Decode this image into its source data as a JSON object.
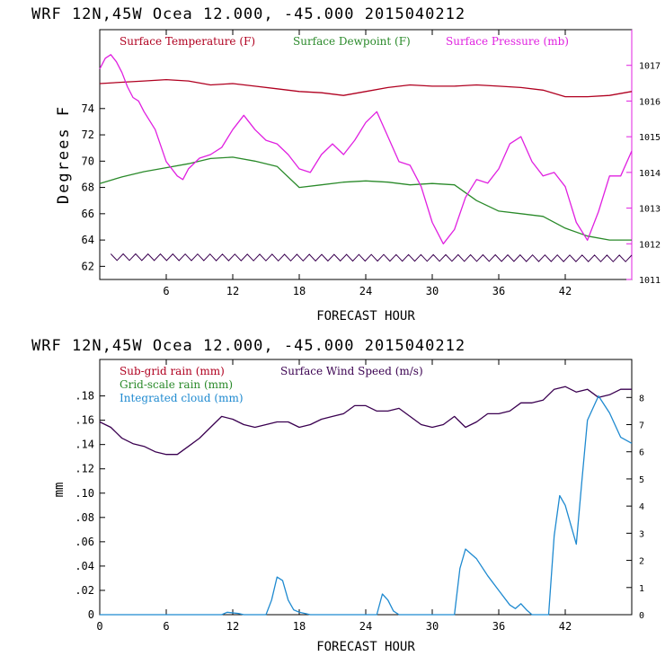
{
  "chart_data": [
    {
      "type": "line",
      "header": "WRF  12N,45W Ocea  12.000, -45.000  2015040212",
      "xlabel": "FORECAST HOUR",
      "ylabel": "Degrees F",
      "xlim": [
        0,
        48
      ],
      "ylim": [
        61,
        80
      ],
      "xticks": [
        "6",
        "12",
        "18",
        "24",
        "30",
        "36",
        "42"
      ],
      "yticks": [
        "62",
        "64",
        "66",
        "68",
        "70",
        "72",
        "74"
      ],
      "y2lim": [
        1011,
        1018
      ],
      "y2ticks": [
        "1011",
        "1012",
        "1013",
        "1014",
        "1015",
        "1016",
        "1017"
      ],
      "legend": [
        "Surface Temperature (F)",
        "Surface Dewpoint (F)",
        "Surface Pressure (mb)"
      ],
      "colors": {
        "temperature": "#b00020",
        "dewpoint": "#2a8a2a",
        "pressure": "#e020e0",
        "wind": "#3a0050"
      },
      "series": [
        {
          "name": "Surface Temperature (F)",
          "axis": "left",
          "x": [
            0,
            2,
            4,
            6,
            8,
            10,
            12,
            14,
            16,
            18,
            20,
            22,
            24,
            26,
            28,
            30,
            32,
            34,
            36,
            38,
            40,
            42,
            44,
            46,
            48
          ],
          "values": [
            75.9,
            76.0,
            76.1,
            76.2,
            76.1,
            75.8,
            75.9,
            75.7,
            75.5,
            75.3,
            75.2,
            75.0,
            75.3,
            75.6,
            75.8,
            75.7,
            75.7,
            75.8,
            75.7,
            75.6,
            75.4,
            74.9,
            74.9,
            75.0,
            75.3
          ]
        },
        {
          "name": "Surface Dewpoint (F)",
          "axis": "left",
          "x": [
            0,
            2,
            4,
            6,
            8,
            10,
            12,
            14,
            16,
            18,
            20,
            22,
            24,
            26,
            28,
            30,
            32,
            34,
            36,
            38,
            40,
            42,
            44,
            46,
            48
          ],
          "values": [
            68.3,
            68.8,
            69.2,
            69.5,
            69.8,
            70.2,
            70.3,
            70.0,
            69.6,
            68.0,
            68.2,
            68.4,
            68.5,
            68.4,
            68.2,
            68.3,
            68.2,
            67.0,
            66.2,
            66.0,
            65.8,
            64.9,
            64.3,
            64.0,
            64.0
          ]
        },
        {
          "name": "Surface Pressure (mb)",
          "axis": "right",
          "x": [
            0,
            0.5,
            1,
            1.5,
            2,
            2.5,
            3,
            3.5,
            4,
            5,
            6,
            7,
            7.5,
            8,
            9,
            10,
            11,
            12,
            13,
            14,
            15,
            16,
            17,
            18,
            19,
            20,
            21,
            22,
            23,
            24,
            25,
            26,
            27,
            28,
            29,
            30,
            31,
            32,
            33,
            34,
            35,
            36,
            37,
            38,
            39,
            40,
            41,
            42,
            43,
            44,
            45,
            46,
            47,
            48
          ],
          "values": [
            1016.9,
            1017.2,
            1017.3,
            1017.1,
            1016.8,
            1016.4,
            1016.1,
            1016.0,
            1015.7,
            1015.2,
            1014.3,
            1013.9,
            1013.8,
            1014.1,
            1014.4,
            1014.5,
            1014.7,
            1015.2,
            1015.6,
            1015.2,
            1014.9,
            1014.8,
            1014.5,
            1014.1,
            1014.0,
            1014.5,
            1014.8,
            1014.5,
            1014.9,
            1015.4,
            1015.7,
            1015.0,
            1014.3,
            1014.2,
            1013.6,
            1012.6,
            1012.0,
            1012.4,
            1013.3,
            1013.8,
            1013.7,
            1014.1,
            1014.8,
            1015.0,
            1014.3,
            1013.9,
            1014.0,
            1013.6,
            1012.6,
            1012.1,
            1012.9,
            1013.9,
            1013.9,
            1014.6
          ]
        },
        {
          "name": "Surface Wind Speed (m/s)",
          "axis": "left",
          "style": "zigzag",
          "x": [
            1,
            48
          ],
          "values": [
            62.7,
            62.6
          ]
        }
      ]
    },
    {
      "type": "line",
      "header": "WRF  12N,45W Ocea  12.000, -45.000  2015040212",
      "xlabel": "FORECAST HOUR",
      "ylabel": "mm",
      "xlim": [
        0,
        48
      ],
      "ylim": [
        0,
        0.21
      ],
      "xticks": [
        "0",
        "6",
        "12",
        "18",
        "24",
        "30",
        "36",
        "42"
      ],
      "yticks": [
        "0",
        ".02",
        ".04",
        ".06",
        ".08",
        ".10",
        ".12",
        ".14",
        ".16",
        ".18"
      ],
      "y2lim": [
        0,
        9.4
      ],
      "y2ticks": [
        "0",
        "1",
        "2",
        "3",
        "4",
        "5",
        "6",
        "7",
        "8"
      ],
      "legend": [
        "Sub-grid rain (mm)",
        "Surface Wind Speed (m/s)",
        "Grid-scale rain (mm)",
        "Integrated cloud (mm)"
      ],
      "colors": {
        "subgrid": "#b00020",
        "grid": "#2a8a2a",
        "cloud": "#1f8ad0",
        "wind": "#3a0050"
      },
      "series": [
        {
          "name": "Surface Wind Speed (m/s)",
          "axis": "right",
          "x": [
            0,
            1,
            2,
            3,
            4,
            5,
            6,
            7,
            8,
            9,
            10,
            11,
            12,
            13,
            14,
            15,
            16,
            17,
            18,
            19,
            20,
            21,
            22,
            23,
            24,
            25,
            26,
            27,
            28,
            29,
            30,
            31,
            32,
            33,
            34,
            35,
            36,
            37,
            38,
            39,
            40,
            41,
            42,
            43,
            44,
            45,
            46,
            47,
            48
          ],
          "values": [
            7.1,
            6.9,
            6.5,
            6.3,
            6.2,
            6.0,
            5.9,
            5.9,
            6.2,
            6.5,
            6.9,
            7.3,
            7.2,
            7.0,
            6.9,
            7.0,
            7.1,
            7.1,
            6.9,
            7.0,
            7.2,
            7.3,
            7.4,
            7.7,
            7.7,
            7.5,
            7.5,
            7.6,
            7.3,
            7.0,
            6.9,
            7.0,
            7.3,
            6.9,
            7.1,
            7.4,
            7.4,
            7.5,
            7.8,
            7.8,
            7.9,
            8.3,
            8.4,
            8.2,
            8.3,
            8.0,
            8.1,
            8.3,
            8.3
          ]
        },
        {
          "name": "Integrated cloud (mm)",
          "axis": "left",
          "x": [
            0,
            11,
            11.5,
            12.5,
            13,
            15,
            15.5,
            16,
            16.5,
            17,
            17.5,
            18,
            19,
            25,
            25.5,
            26,
            26.5,
            27,
            32,
            32.5,
            33,
            34,
            35,
            36,
            37,
            37.5,
            38,
            38.5,
            39,
            40.5,
            41,
            41.5,
            42,
            43,
            43.5,
            44,
            45,
            46,
            47,
            48
          ],
          "values": [
            0,
            0,
            0.002,
            0.001,
            0,
            0,
            0.012,
            0.031,
            0.028,
            0.012,
            0.004,
            0.002,
            0,
            0,
            0.017,
            0.012,
            0.003,
            0,
            0,
            0.038,
            0.054,
            0.046,
            0.032,
            0.02,
            0.008,
            0.005,
            0.009,
            0.004,
            0,
            0,
            0.065,
            0.098,
            0.09,
            0.058,
            0.11,
            0.16,
            0.18,
            0.166,
            0.146,
            0.141
          ]
        }
      ]
    }
  ]
}
